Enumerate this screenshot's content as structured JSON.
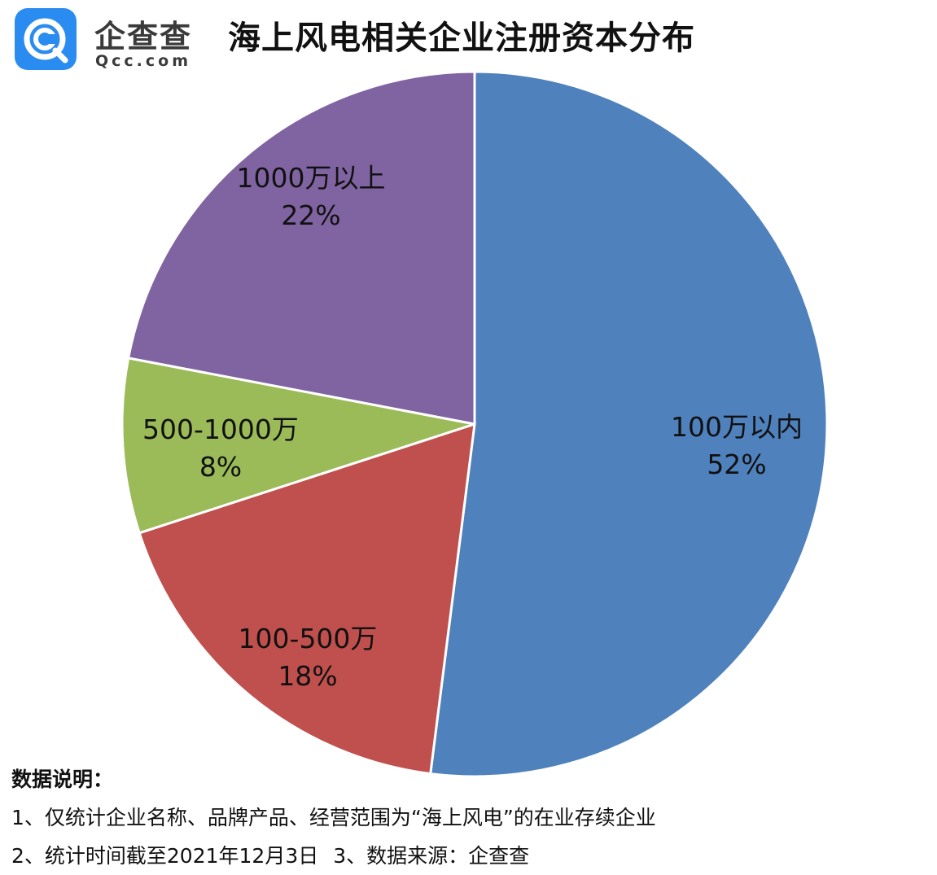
{
  "logo": {
    "name_cn": "企查查",
    "name_en": "Qcc.com",
    "brand_color": "#2a8cf0"
  },
  "title": "海上风电相关企业注册资本分布",
  "chart_data": {
    "type": "pie",
    "title": "海上风电相关企业注册资本分布",
    "start_angle_deg": 0,
    "direction": "clockwise",
    "slices": [
      {
        "label": "100万以内",
        "value": 52,
        "display": "52%",
        "color": "#4f81bd"
      },
      {
        "label": "100-500万",
        "value": 18,
        "display": "18%",
        "color": "#c0504d"
      },
      {
        "label": "500-1000万",
        "value": 8,
        "display": "8%",
        "color": "#9bbb59"
      },
      {
        "label": "1000万以上",
        "value": 22,
        "display": "22%",
        "color": "#8064a2"
      }
    ],
    "legend": "none"
  },
  "notes": {
    "heading": "数据说明：",
    "line1": "1、仅统计企业名称、品牌产品、经营范围为“海上风电”的在业存续企业",
    "line2a": "2、统计时间截至2021年12月3日",
    "line2b": "3、数据来源：企查查"
  }
}
